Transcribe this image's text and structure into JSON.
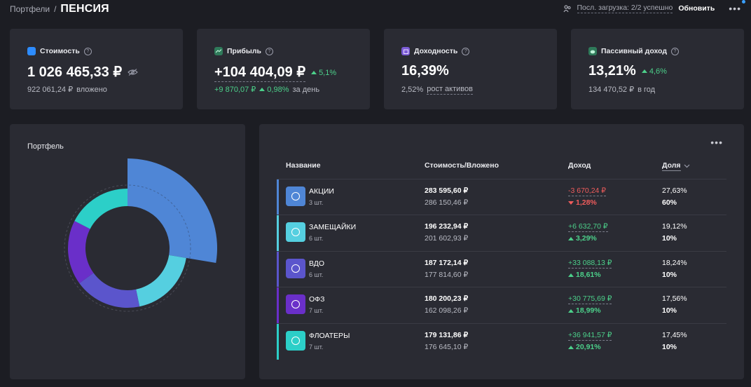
{
  "breadcrumb": {
    "parent": "Портфели",
    "separator": "/",
    "title": "ПЕНСИЯ"
  },
  "topbar": {
    "load_status": "Посл. загрузка: 2/2 успешно",
    "refresh_label": "Обновить",
    "more_icon": "more-dots-icon",
    "status_icon": "people-icon"
  },
  "stats": [
    {
      "icon": "wallet-icon",
      "icon_color": "#2d8cff",
      "label": "Стоимость",
      "value": "1 026 465,33 ₽",
      "sub_value": "922 061,24 ₽",
      "sub_label": "вложено"
    },
    {
      "icon": "chart-icon",
      "icon_color": "#2f7a5a",
      "label": "Прибыль",
      "value": "+104 404,09 ₽",
      "value_change": "5,1%",
      "sub_value": "+9 870,07 ₽",
      "sub_change": "0,98%",
      "sub_label": "за день"
    },
    {
      "icon": "calendar-icon",
      "icon_color": "#7b5cd6",
      "label": "Доходность",
      "value": "16,39%",
      "sub_value": "2,52%",
      "sub_label": "рост активов"
    },
    {
      "icon": "piggy-icon",
      "icon_color": "#2f7a5a",
      "label": "Пассивный доход",
      "value": "13,21%",
      "value_change": "4,6%",
      "sub_value": "134 470,52 ₽",
      "sub_label": "в год"
    }
  ],
  "portfolio": {
    "title": "Портфель"
  },
  "table": {
    "more_icon": "more-dots-icon",
    "headers": {
      "name": "Название",
      "value": "Стоимость/Вложено",
      "income": "Доход",
      "share": "Доля"
    },
    "rows": [
      {
        "name": "АКЦИИ",
        "count": "3 шт.",
        "value": "283 595,60 ₽",
        "invested": "286 150,46 ₽",
        "income": "-3 670,24 ₽",
        "income_pct": "1,28%",
        "direction": "down",
        "share": "27,63%",
        "target": "60%",
        "color": "#4f86d6"
      },
      {
        "name": "ЗАМЕЩАЙКИ",
        "count": "6 шт.",
        "value": "196 232,94 ₽",
        "invested": "201 602,93 ₽",
        "income": "+6 632,70 ₽",
        "income_pct": "3,29%",
        "direction": "up",
        "share": "19,12%",
        "target": "10%",
        "color": "#55cfe0"
      },
      {
        "name": "ВДО",
        "count": "6 шт.",
        "value": "187 172,14 ₽",
        "invested": "177 814,60 ₽",
        "income": "+33 088,13 ₽",
        "income_pct": "18,61%",
        "direction": "up",
        "share": "18,24%",
        "target": "10%",
        "color": "#5b55cc"
      },
      {
        "name": "ОФЗ",
        "count": "7 шт.",
        "value": "180 200,23 ₽",
        "invested": "162 098,26 ₽",
        "income": "+30 775,69 ₽",
        "income_pct": "18,99%",
        "direction": "up",
        "share": "17,56%",
        "target": "10%",
        "color": "#6a2fc9"
      },
      {
        "name": "ФЛОАТЕРЫ",
        "count": "7 шт.",
        "value": "179 131,86 ₽",
        "invested": "176 645,10 ₽",
        "income": "+36 941,57 ₽",
        "income_pct": "20,91%",
        "direction": "up",
        "share": "17,45%",
        "target": "10%",
        "color": "#2ccfc8"
      }
    ]
  },
  "chart_data": {
    "type": "pie",
    "style": "donut with radius proportional to target share",
    "title": "Портфель",
    "categories": [
      "АКЦИИ",
      "ЗАМЕЩАЙКИ",
      "ВДО",
      "ОФЗ",
      "ФЛОАТЕРЫ"
    ],
    "values": [
      27.63,
      19.12,
      18.24,
      17.56,
      17.45
    ],
    "target_shares": [
      60,
      10,
      10,
      10,
      10
    ],
    "colors": [
      "#4f86d6",
      "#55cfe0",
      "#5b55cc",
      "#6a2fc9",
      "#2ccfc8"
    ]
  }
}
